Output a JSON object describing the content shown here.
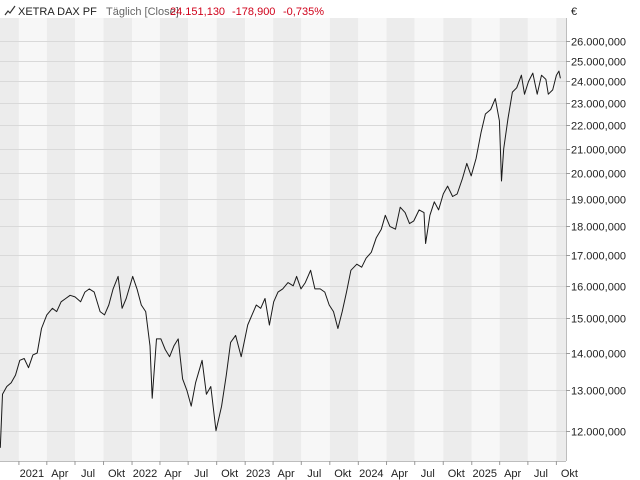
{
  "header": {
    "icon": "line-chart-icon",
    "instrument": "XETRA DAX PF",
    "interval": "Täglich [Close]",
    "last": "24.151,130",
    "change": "-178,900",
    "change_pct": "-0,735%",
    "currency": "€"
  },
  "colors": {
    "line": "#1a1a1a",
    "negative": "#d0021b",
    "band_light": "#f7f7f7",
    "band_dark": "#ececec",
    "grid": "#d9d9d9",
    "text": "#222222",
    "muted": "#666666"
  },
  "chart_data": {
    "type": "line",
    "title": "XETRA DAX PF",
    "xlabel": "",
    "ylabel": "",
    "x_range": [
      "2020-11-01",
      "2025-11-01"
    ],
    "ylim": [
      11300000,
      26900000
    ],
    "grid": true,
    "x_ticks": [
      {
        "label": "2021",
        "date": "2021-01-01"
      },
      {
        "label": "Apr",
        "date": "2021-04-01"
      },
      {
        "label": "Jul",
        "date": "2021-07-01"
      },
      {
        "label": "Okt",
        "date": "2021-10-01"
      },
      {
        "label": "2022",
        "date": "2022-01-01"
      },
      {
        "label": "Apr",
        "date": "2022-04-01"
      },
      {
        "label": "Jul",
        "date": "2022-07-01"
      },
      {
        "label": "Okt",
        "date": "2022-10-01"
      },
      {
        "label": "2023",
        "date": "2023-01-01"
      },
      {
        "label": "Apr",
        "date": "2023-04-01"
      },
      {
        "label": "Jul",
        "date": "2023-07-01"
      },
      {
        "label": "Okt",
        "date": "2023-10-01"
      },
      {
        "label": "2024",
        "date": "2024-01-01"
      },
      {
        "label": "Apr",
        "date": "2024-04-01"
      },
      {
        "label": "Jul",
        "date": "2024-07-01"
      },
      {
        "label": "Okt",
        "date": "2024-10-01"
      },
      {
        "label": "2025",
        "date": "2025-01-01"
      },
      {
        "label": "Apr",
        "date": "2025-04-01"
      },
      {
        "label": "Jul",
        "date": "2025-07-01"
      },
      {
        "label": "Okt",
        "date": "2025-10-01"
      }
    ],
    "y_ticks": [
      {
        "label": "12.000,000",
        "value": 12000000
      },
      {
        "label": "13.000,000",
        "value": 13000000
      },
      {
        "label": "14.000,000",
        "value": 14000000
      },
      {
        "label": "15.000,000",
        "value": 15000000
      },
      {
        "label": "16.000,000",
        "value": 16000000
      },
      {
        "label": "17.000,000",
        "value": 17000000
      },
      {
        "label": "18.000,000",
        "value": 18000000
      },
      {
        "label": "19.000,000",
        "value": 19000000
      },
      {
        "label": "20.000,000",
        "value": 20000000
      },
      {
        "label": "21.000,000",
        "value": 21000000
      },
      {
        "label": "22.000,000",
        "value": 22000000
      },
      {
        "label": "23.000,000",
        "value": 23000000
      },
      {
        "label": "24.000,000",
        "value": 24000000
      },
      {
        "label": "25.000,000",
        "value": 25000000
      },
      {
        "label": "26.000,000",
        "value": 26000000
      }
    ],
    "series": [
      {
        "name": "XETRA DAX PF",
        "points": [
          [
            "2020-11-02",
            11600000
          ],
          [
            "2020-11-09",
            12900000
          ],
          [
            "2020-11-23",
            13100000
          ],
          [
            "2020-12-07",
            13200000
          ],
          [
            "2020-12-21",
            13400000
          ],
          [
            "2021-01-04",
            13800000
          ],
          [
            "2021-01-18",
            13850000
          ],
          [
            "2021-02-01",
            13600000
          ],
          [
            "2021-02-15",
            13950000
          ],
          [
            "2021-03-01",
            14000000
          ],
          [
            "2021-03-15",
            14700000
          ],
          [
            "2021-04-01",
            15100000
          ],
          [
            "2021-04-19",
            15300000
          ],
          [
            "2021-05-03",
            15200000
          ],
          [
            "2021-05-17",
            15500000
          ],
          [
            "2021-06-01",
            15600000
          ],
          [
            "2021-06-15",
            15700000
          ],
          [
            "2021-07-01",
            15650000
          ],
          [
            "2021-07-19",
            15500000
          ],
          [
            "2021-08-02",
            15800000
          ],
          [
            "2021-08-16",
            15900000
          ],
          [
            "2021-09-01",
            15800000
          ],
          [
            "2021-09-20",
            15200000
          ],
          [
            "2021-10-04",
            15100000
          ],
          [
            "2021-10-18",
            15400000
          ],
          [
            "2021-11-01",
            15900000
          ],
          [
            "2021-11-17",
            16300000
          ],
          [
            "2021-11-30",
            15300000
          ],
          [
            "2021-12-13",
            15600000
          ],
          [
            "2022-01-03",
            16300000
          ],
          [
            "2022-01-17",
            15900000
          ],
          [
            "2022-01-31",
            15400000
          ],
          [
            "2022-02-14",
            15200000
          ],
          [
            "2022-02-28",
            14200000
          ],
          [
            "2022-03-07",
            12800000
          ],
          [
            "2022-03-21",
            14400000
          ],
          [
            "2022-04-04",
            14400000
          ],
          [
            "2022-04-18",
            14100000
          ],
          [
            "2022-05-02",
            13900000
          ],
          [
            "2022-05-16",
            14200000
          ],
          [
            "2022-05-30",
            14400000
          ],
          [
            "2022-06-13",
            13300000
          ],
          [
            "2022-06-27",
            13000000
          ],
          [
            "2022-07-11",
            12600000
          ],
          [
            "2022-07-25",
            13200000
          ],
          [
            "2022-08-15",
            13800000
          ],
          [
            "2022-08-29",
            12900000
          ],
          [
            "2022-09-12",
            13100000
          ],
          [
            "2022-09-29",
            12000000
          ],
          [
            "2022-10-17",
            12600000
          ],
          [
            "2022-11-01",
            13400000
          ],
          [
            "2022-11-15",
            14300000
          ],
          [
            "2022-12-01",
            14500000
          ],
          [
            "2022-12-19",
            13900000
          ],
          [
            "2023-01-09",
            14800000
          ],
          [
            "2023-01-23",
            15100000
          ],
          [
            "2023-02-06",
            15400000
          ],
          [
            "2023-02-20",
            15300000
          ],
          [
            "2023-03-06",
            15600000
          ],
          [
            "2023-03-20",
            14800000
          ],
          [
            "2023-04-03",
            15500000
          ],
          [
            "2023-04-17",
            15800000
          ],
          [
            "2023-05-02",
            15900000
          ],
          [
            "2023-05-19",
            16100000
          ],
          [
            "2023-06-05",
            16000000
          ],
          [
            "2023-06-16",
            16300000
          ],
          [
            "2023-06-30",
            15900000
          ],
          [
            "2023-07-14",
            16100000
          ],
          [
            "2023-07-31",
            16500000
          ],
          [
            "2023-08-14",
            15900000
          ],
          [
            "2023-08-31",
            15900000
          ],
          [
            "2023-09-15",
            15800000
          ],
          [
            "2023-09-29",
            15400000
          ],
          [
            "2023-10-13",
            15200000
          ],
          [
            "2023-10-27",
            14700000
          ],
          [
            "2023-11-10",
            15200000
          ],
          [
            "2023-11-24",
            15800000
          ],
          [
            "2023-12-08",
            16500000
          ],
          [
            "2023-12-27",
            16700000
          ],
          [
            "2024-01-12",
            16600000
          ],
          [
            "2024-01-26",
            16900000
          ],
          [
            "2024-02-12",
            17100000
          ],
          [
            "2024-02-28",
            17600000
          ],
          [
            "2024-03-15",
            17900000
          ],
          [
            "2024-03-28",
            18400000
          ],
          [
            "2024-04-12",
            18000000
          ],
          [
            "2024-04-30",
            17900000
          ],
          [
            "2024-05-15",
            18700000
          ],
          [
            "2024-05-31",
            18500000
          ],
          [
            "2024-06-14",
            18100000
          ],
          [
            "2024-06-28",
            18200000
          ],
          [
            "2024-07-15",
            18600000
          ],
          [
            "2024-07-31",
            18500000
          ],
          [
            "2024-08-05",
            17400000
          ],
          [
            "2024-08-19",
            18400000
          ],
          [
            "2024-09-02",
            18900000
          ],
          [
            "2024-09-16",
            18600000
          ],
          [
            "2024-10-01",
            19200000
          ],
          [
            "2024-10-15",
            19500000
          ],
          [
            "2024-10-31",
            19100000
          ],
          [
            "2024-11-15",
            19200000
          ],
          [
            "2024-12-02",
            19800000
          ],
          [
            "2024-12-16",
            20400000
          ],
          [
            "2024-12-30",
            19900000
          ],
          [
            "2025-01-15",
            20600000
          ],
          [
            "2025-01-31",
            21700000
          ],
          [
            "2025-02-14",
            22500000
          ],
          [
            "2025-03-03",
            22700000
          ],
          [
            "2025-03-18",
            23200000
          ],
          [
            "2025-03-31",
            22200000
          ],
          [
            "2025-04-07",
            19700000
          ],
          [
            "2025-04-14",
            21000000
          ],
          [
            "2025-04-28",
            22300000
          ],
          [
            "2025-05-12",
            23500000
          ],
          [
            "2025-05-26",
            23700000
          ],
          [
            "2025-06-10",
            24300000
          ],
          [
            "2025-06-20",
            23400000
          ],
          [
            "2025-07-03",
            24000000
          ],
          [
            "2025-07-17",
            24400000
          ],
          [
            "2025-07-31",
            23400000
          ],
          [
            "2025-08-14",
            24300000
          ],
          [
            "2025-08-28",
            24100000
          ],
          [
            "2025-09-05",
            23400000
          ],
          [
            "2025-09-19",
            23600000
          ],
          [
            "2025-10-01",
            24300000
          ],
          [
            "2025-10-09",
            24500000
          ],
          [
            "2025-10-14",
            24151130
          ]
        ]
      }
    ]
  }
}
